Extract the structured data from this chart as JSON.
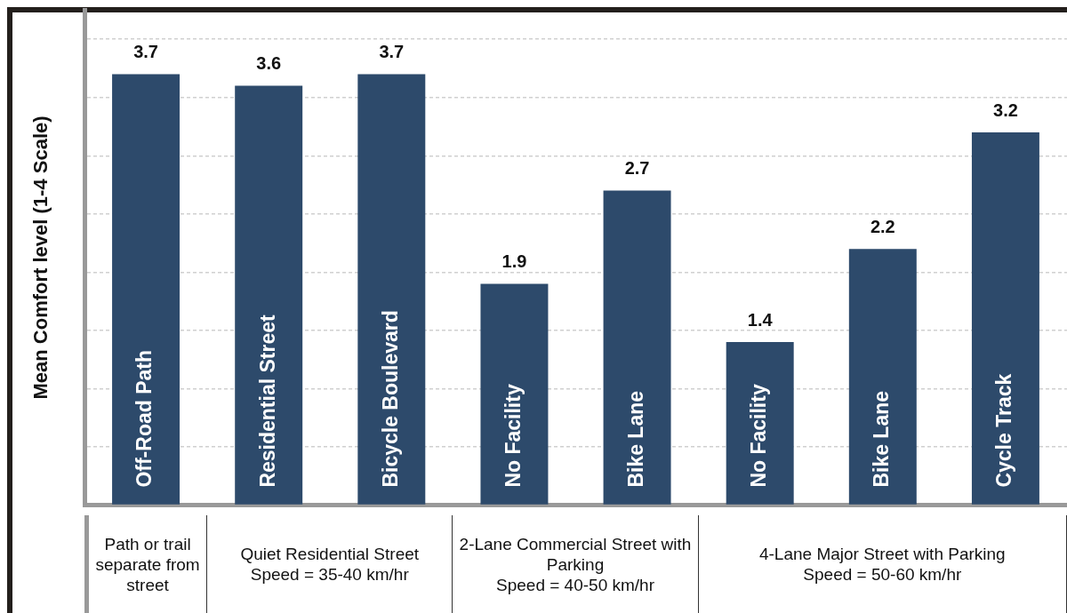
{
  "chart_data": {
    "type": "bar",
    "ylabel": "Mean Comfort level (1-4 Scale)",
    "categories": [
      "Off-Road Path",
      "Residential Street",
      "Bicycle Boulevard",
      "No Facility",
      "Bike Lane",
      "No Facility",
      "Bike Lane",
      "Cycle Track"
    ],
    "values": [
      3.7,
      3.6,
      3.7,
      1.9,
      2.7,
      1.4,
      2.2,
      3.2
    ],
    "color": "#2d4a6b",
    "data_labels": true,
    "ylim": [
      0,
      4
    ],
    "yticks": [
      {
        "value": 0,
        "label": null
      },
      {
        "value": 0.5,
        "label": null
      },
      {
        "value": 1,
        "label": null
      },
      {
        "value": 1.5,
        "label": null
      },
      {
        "value": 2,
        "label": null
      },
      {
        "value": 2.5,
        "label": null
      },
      {
        "value": 3,
        "label": null
      },
      {
        "value": 3.5,
        "label": null
      },
      {
        "value": 4,
        "label": null
      }
    ],
    "tick_labels": "x",
    "grid": "y",
    "annotations": [
      "Path or trail separate from street",
      "Quiet Residential Street\nSpeed = 35-40 km/hr",
      "2-Lane Commercial Street with Parking\nSpeed = 40-50 km/hr",
      "4-Lane Major Street with Parking\nSpeed = 50-60 km/hr"
    ]
  }
}
